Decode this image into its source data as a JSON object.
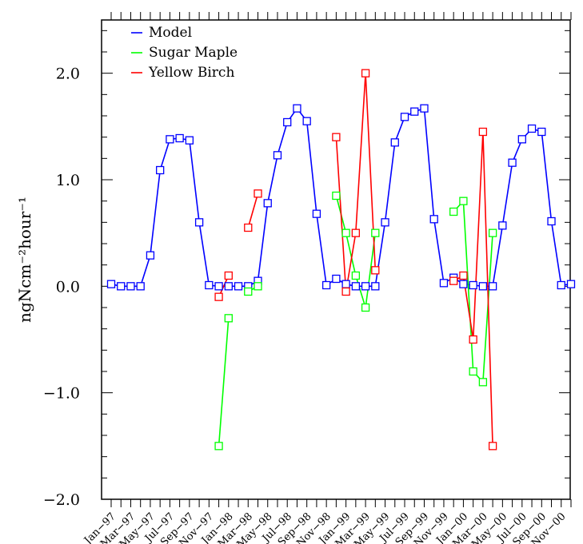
{
  "chart_data": {
    "type": "line",
    "title": "",
    "xlabel": "",
    "ylabel": "ngNcm⁻²hour⁻¹",
    "ylim": [
      -2.0,
      2.5
    ],
    "xlim": [
      0,
      47.9
    ],
    "y_ticks": [
      {
        "value": 2.0,
        "label": "2.0"
      },
      {
        "value": 1.0,
        "label": "1.0"
      },
      {
        "value": 0.0,
        "label": "0.0"
      },
      {
        "value": -1.0,
        "label": "−1.0"
      },
      {
        "value": -2.0,
        "label": "−2.0"
      }
    ],
    "x_tick_labels": [
      {
        "index": 0,
        "label": "Jan−97"
      },
      {
        "index": 2,
        "label": "Mar−97"
      },
      {
        "index": 4,
        "label": "May−97"
      },
      {
        "index": 6,
        "label": "Jul−97"
      },
      {
        "index": 8,
        "label": "Sep−97"
      },
      {
        "index": 10,
        "label": "Nov−97"
      },
      {
        "index": 12,
        "label": "Jan−98"
      },
      {
        "index": 14,
        "label": "Mar−98"
      },
      {
        "index": 16,
        "label": "May−98"
      },
      {
        "index": 18,
        "label": "Jul−98"
      },
      {
        "index": 20,
        "label": "Sep−98"
      },
      {
        "index": 22,
        "label": "Nov−98"
      },
      {
        "index": 24,
        "label": "Jan−99"
      },
      {
        "index": 26,
        "label": "Mar−99"
      },
      {
        "index": 28,
        "label": "May−99"
      },
      {
        "index": 30,
        "label": "Jul−99"
      },
      {
        "index": 32,
        "label": "Sep−99"
      },
      {
        "index": 34,
        "label": "Nov−99"
      },
      {
        "index": 36,
        "label": "Jan−00"
      },
      {
        "index": 38,
        "label": "Mar−00"
      },
      {
        "index": 40,
        "label": "May−00"
      },
      {
        "index": 42,
        "label": "Jul−00"
      },
      {
        "index": 44,
        "label": "Sep−00"
      },
      {
        "index": 46,
        "label": "Nov−00"
      }
    ],
    "legend_position": "top-left",
    "series": [
      {
        "name": "Model",
        "color": "#0000ff",
        "segments": [
          [
            [
              0,
              0.02
            ],
            [
              1,
              0.0
            ],
            [
              2,
              0.0
            ],
            [
              3,
              0.0
            ],
            [
              4,
              0.29
            ],
            [
              5,
              1.09
            ],
            [
              6,
              1.38
            ],
            [
              7,
              1.39
            ],
            [
              8,
              1.37
            ],
            [
              9,
              0.6
            ],
            [
              10,
              0.01
            ],
            [
              11,
              0.0
            ],
            [
              12,
              0.0
            ],
            [
              13,
              0.0
            ],
            [
              14,
              0.0
            ],
            [
              15,
              0.05
            ],
            [
              16,
              0.78
            ],
            [
              17,
              1.23
            ],
            [
              18,
              1.54
            ],
            [
              19,
              1.67
            ],
            [
              20,
              1.55
            ],
            [
              21,
              0.68
            ],
            [
              22,
              0.01
            ],
            [
              23,
              0.07
            ],
            [
              24,
              0.02
            ],
            [
              25,
              0.0
            ],
            [
              26,
              0.0
            ],
            [
              27,
              0.0
            ],
            [
              28,
              0.6
            ],
            [
              29,
              1.35
            ],
            [
              30,
              1.59
            ],
            [
              31,
              1.64
            ],
            [
              32,
              1.67
            ],
            [
              33,
              0.63
            ],
            [
              34,
              0.03
            ],
            [
              35,
              0.08
            ],
            [
              36,
              0.02
            ],
            [
              37,
              0.01
            ],
            [
              38,
              0.0
            ],
            [
              39,
              0.0
            ],
            [
              40,
              0.57
            ],
            [
              41,
              1.16
            ],
            [
              42,
              1.38
            ],
            [
              43,
              1.48
            ],
            [
              44,
              1.45
            ],
            [
              45,
              0.61
            ],
            [
              46,
              0.01
            ],
            [
              47,
              0.02
            ]
          ]
        ]
      },
      {
        "name": "Sugar Maple",
        "color": "#00ff00",
        "segments": [
          [
            [
              11,
              -1.5
            ],
            [
              12,
              -0.3
            ]
          ],
          [
            [
              14,
              -0.05
            ],
            [
              15,
              0.0
            ]
          ],
          [
            [
              23,
              0.85
            ],
            [
              24,
              0.5
            ],
            [
              25,
              0.1
            ],
            [
              26,
              -0.2
            ],
            [
              27,
              0.5
            ]
          ],
          [
            [
              35,
              0.7
            ],
            [
              36,
              0.8
            ],
            [
              37,
              -0.8
            ],
            [
              38,
              -0.9
            ],
            [
              39,
              0.5
            ]
          ]
        ]
      },
      {
        "name": "Yellow Birch",
        "color": "#ff0000",
        "segments": [
          [
            [
              11,
              -0.1
            ],
            [
              12,
              0.1
            ]
          ],
          [
            [
              14,
              0.55
            ],
            [
              15,
              0.87
            ]
          ],
          [
            [
              23,
              1.4
            ],
            [
              24,
              -0.05
            ],
            [
              25,
              0.5
            ],
            [
              26,
              2.0
            ],
            [
              27,
              0.15
            ]
          ],
          [
            [
              35,
              0.05
            ],
            [
              36,
              0.1
            ],
            [
              37,
              -0.5
            ],
            [
              38,
              1.45
            ],
            [
              39,
              -1.5
            ]
          ]
        ]
      }
    ]
  }
}
